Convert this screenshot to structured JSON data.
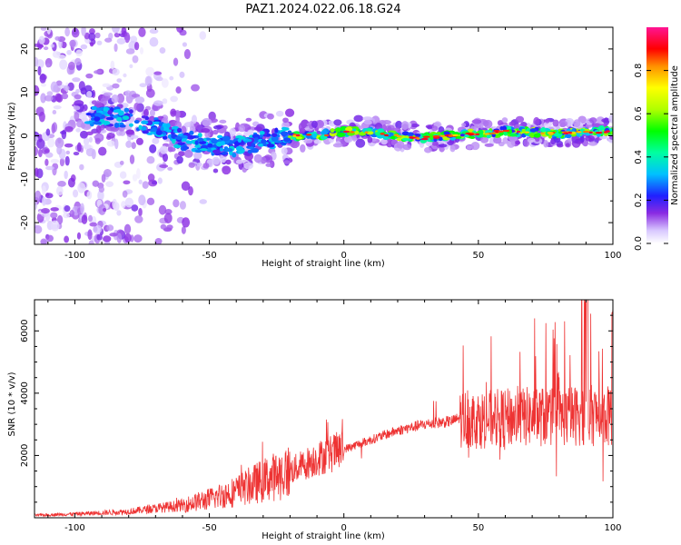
{
  "title": "PAZ1.2024.022.06.18.G24",
  "chart_data": [
    {
      "type": "heatmap",
      "xlabel": "Height of straight line (km)",
      "ylabel": "Frequency (Hz)",
      "xlim": [
        -115,
        100
      ],
      "ylim": [
        -25,
        25
      ],
      "xticks": [
        -100,
        -50,
        0,
        50,
        100
      ],
      "yticks": [
        -20,
        -10,
        0,
        10,
        20
      ],
      "colorbar": {
        "label": "Normalized spectral amplitude",
        "range": [
          0.0,
          1.0
        ],
        "ticks": [
          "0.0",
          "0.2",
          "0.4",
          "0.6",
          "0.8"
        ]
      },
      "ridge": {
        "x": [
          -115,
          -100,
          -90,
          -80,
          -70,
          -60,
          -50,
          -40,
          -30,
          -20,
          -10,
          0,
          10,
          20,
          30,
          40,
          50,
          60,
          70,
          80,
          90,
          100
        ],
        "frequency": [
          6,
          5,
          4.5,
          4,
          2,
          -1,
          -2,
          -2.5,
          -1,
          0,
          0,
          1,
          1,
          0,
          -0.5,
          0,
          0.5,
          1,
          0.8,
          0.5,
          1,
          1
        ]
      }
    },
    {
      "type": "line",
      "xlabel": "Height of straight line (km)",
      "ylabel": "SNR (10 * v/v)",
      "xlim": [
        -115,
        100
      ],
      "ylim": [
        0,
        7000
      ],
      "xticks": [
        -100,
        -50,
        0,
        50,
        100
      ],
      "yticks": [
        2000,
        4000,
        6000
      ],
      "series": [
        {
          "color": "#ee3333",
          "trend_x": [
            -115,
            -100,
            -80,
            -60,
            -50,
            -40,
            -30,
            -20,
            -10,
            0,
            10,
            20,
            30,
            40,
            43,
            50,
            60,
            70,
            80,
            90,
            100
          ],
          "trend_y": [
            80,
            120,
            200,
            400,
            600,
            850,
            1200,
            1500,
            1900,
            2200,
            2500,
            2800,
            3000,
            3100,
            3200,
            3150,
            3200,
            3250,
            3250,
            3300,
            3250
          ]
        }
      ]
    }
  ]
}
